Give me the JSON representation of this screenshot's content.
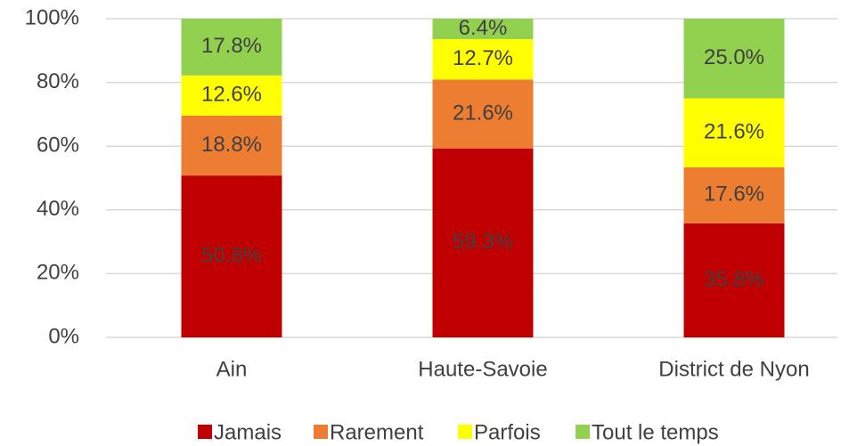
{
  "chart_data": {
    "type": "stacked_bar",
    "categories": [
      "Ain",
      "Haute-Savoie",
      "District de Nyon"
    ],
    "series": [
      {
        "name": "Jamais",
        "color": "#c00000",
        "values": [
          50.8,
          59.3,
          35.8
        ],
        "value_labels": [
          "50.8%",
          "59.3%",
          "35.8%"
        ]
      },
      {
        "name": "Rarement",
        "color": "#ed7d31",
        "values": [
          18.8,
          21.6,
          17.6
        ],
        "value_labels": [
          "18.8%",
          "21.6%",
          "17.6%"
        ]
      },
      {
        "name": "Parfois",
        "color": "#ffff00",
        "values": [
          12.6,
          12.7,
          21.6
        ],
        "value_labels": [
          "12.6%",
          "12.7%",
          "21.6%"
        ]
      },
      {
        "name": "Tout le temps",
        "color": "#92d050",
        "values": [
          17.8,
          6.4,
          25.0
        ],
        "value_labels": [
          "17.8%",
          "6.4%",
          "25.0%"
        ]
      }
    ],
    "ylim": [
      0,
      100
    ],
    "yticks": [
      {
        "value": 0,
        "label": "0%"
      },
      {
        "value": 20,
        "label": "20%"
      },
      {
        "value": 40,
        "label": "40%"
      },
      {
        "value": 60,
        "label": "60%"
      },
      {
        "value": 80,
        "label": "80%"
      },
      {
        "value": 100,
        "label": "100%"
      }
    ],
    "grid": true,
    "legend": "bottom"
  }
}
